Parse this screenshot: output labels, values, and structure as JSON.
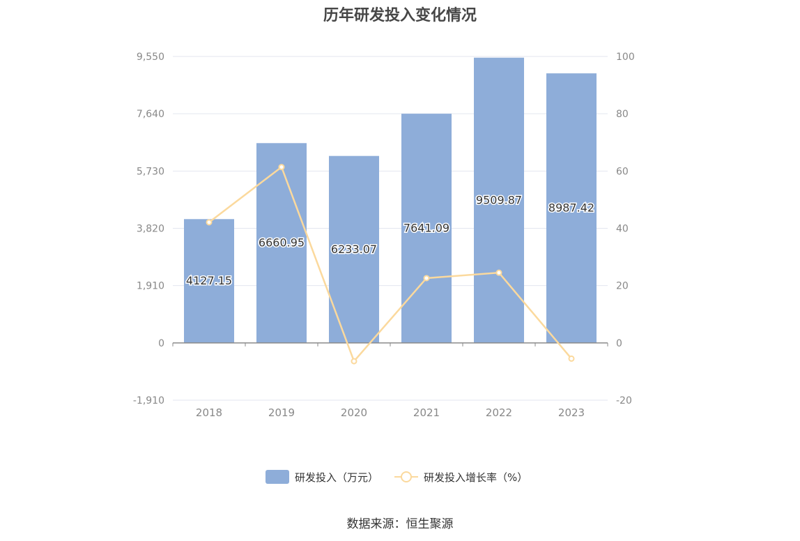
{
  "chart_data": {
    "type": "bar",
    "title": "历年研发投入变化情况",
    "categories": [
      "2018",
      "2019",
      "2020",
      "2021",
      "2022",
      "2023"
    ],
    "series": [
      {
        "name": "研发投入（万元）",
        "type": "bar",
        "axis": "left",
        "values": [
          4127.15,
          6660.95,
          6233.07,
          7641.09,
          9509.87,
          8987.42
        ],
        "labels": [
          "4127.15",
          "6660.95",
          "6233.07",
          "7641.09",
          "9509.87",
          "8987.42"
        ]
      },
      {
        "name": "研发投入增长率（%）",
        "type": "line",
        "axis": "right",
        "values": [
          42.1,
          61.4,
          -6.4,
          22.6,
          24.5,
          -5.5
        ]
      }
    ],
    "left_axis": {
      "ticks": [
        "9,550",
        "7,640",
        "5,730",
        "3,820",
        "1,910",
        "0",
        "-1,910"
      ],
      "min": -1910,
      "max": 9550
    },
    "right_axis": {
      "ticks": [
        "100",
        "80",
        "60",
        "40",
        "20",
        "0",
        "-20"
      ],
      "min": -20,
      "max": 100
    },
    "grid": true,
    "legend_position": "bottom"
  },
  "legend": {
    "bar_label": "研发投入（万元）",
    "line_label": "研发投入增长率（%）"
  },
  "source": "数据来源：恒生聚源",
  "colors": {
    "bar": "#8eadd9",
    "line": "#fbd99d",
    "grid": "#e3e6ef",
    "axis": "#8a8a8a",
    "tick_text": "#888888"
  }
}
